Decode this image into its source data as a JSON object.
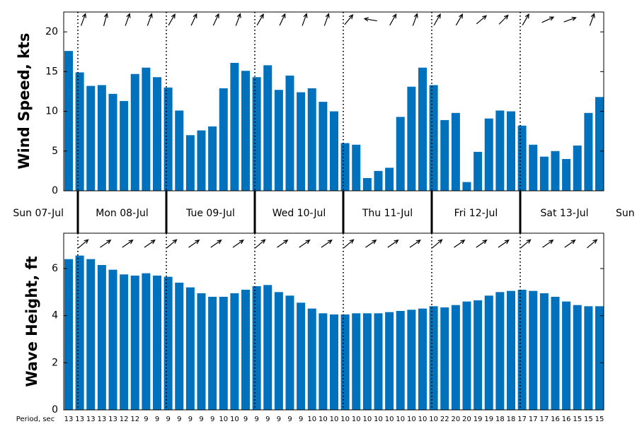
{
  "days": [
    "Sun 07-Jul",
    "Mon 08-Jul",
    "Tue 09-Jul",
    "Wed 10-Jul",
    "Thu 11-Jul",
    "Fri 12-Jul",
    "Sat 13-Jul",
    "Sun"
  ],
  "chart_data": [
    {
      "type": "bar",
      "ylabel": "Wind Speed, kts",
      "color": "#0072bd",
      "ylim": [
        0,
        22.5
      ],
      "yticks": [
        0,
        5,
        10,
        15,
        20
      ],
      "values": [
        17.6,
        14.9,
        13.2,
        13.3,
        12.2,
        11.3,
        14.7,
        15.5,
        14.3,
        13.0,
        10.1,
        7.0,
        7.6,
        8.1,
        12.9,
        16.1,
        15.1,
        14.3,
        15.8,
        12.7,
        14.5,
        12.4,
        12.9,
        11.2,
        10.0,
        6.0,
        5.8,
        1.6,
        2.5,
        2.9,
        9.3,
        13.1,
        15.5,
        13.3,
        8.9,
        9.8,
        1.1,
        4.9,
        9.1,
        10.1,
        10.0,
        8.2,
        5.8,
        4.3,
        5.0,
        4.0,
        5.7,
        9.8,
        11.8
      ],
      "directions": [
        70,
        75,
        70,
        70,
        60,
        65,
        65,
        70,
        60,
        65,
        70,
        70,
        50,
        170,
        60,
        70,
        60,
        60,
        40,
        45,
        60,
        25,
        20,
        70
      ]
    },
    {
      "type": "bar",
      "ylabel": "Wave Height, ft",
      "color": "#0072bd",
      "ylim": [
        0,
        7.5
      ],
      "yticks": [
        0,
        2,
        4,
        6
      ],
      "values": [
        6.4,
        6.55,
        6.4,
        6.15,
        5.95,
        5.75,
        5.7,
        5.8,
        5.7,
        5.65,
        5.4,
        5.2,
        4.95,
        4.8,
        4.8,
        4.95,
        5.1,
        5.25,
        5.3,
        5.0,
        4.85,
        4.55,
        4.3,
        4.1,
        4.05,
        4.05,
        4.1,
        4.1,
        4.1,
        4.15,
        4.2,
        4.25,
        4.3,
        4.4,
        4.35,
        4.45,
        4.6,
        4.65,
        4.85,
        5.0,
        5.05,
        5.1,
        5.05,
        4.95,
        4.8,
        4.6,
        4.45,
        4.4,
        4.4
      ],
      "directions": [
        40,
        35,
        35,
        35,
        40,
        35,
        35,
        35,
        40,
        35,
        35,
        35,
        40,
        35,
        35,
        35,
        40,
        35,
        35,
        35,
        40,
        35,
        35,
        40
      ],
      "period_label": "Period, sec",
      "periods": [
        13,
        13,
        13,
        13,
        13,
        12,
        12,
        9,
        9,
        9,
        9,
        9,
        9,
        9,
        10,
        10,
        9,
        9,
        9,
        9,
        9,
        9,
        10,
        10,
        10,
        10,
        10,
        10,
        10,
        10,
        10,
        10,
        10,
        10,
        22,
        20,
        20,
        19,
        19,
        18,
        18,
        17,
        17,
        17,
        16,
        16,
        15,
        15,
        15
      ]
    }
  ]
}
